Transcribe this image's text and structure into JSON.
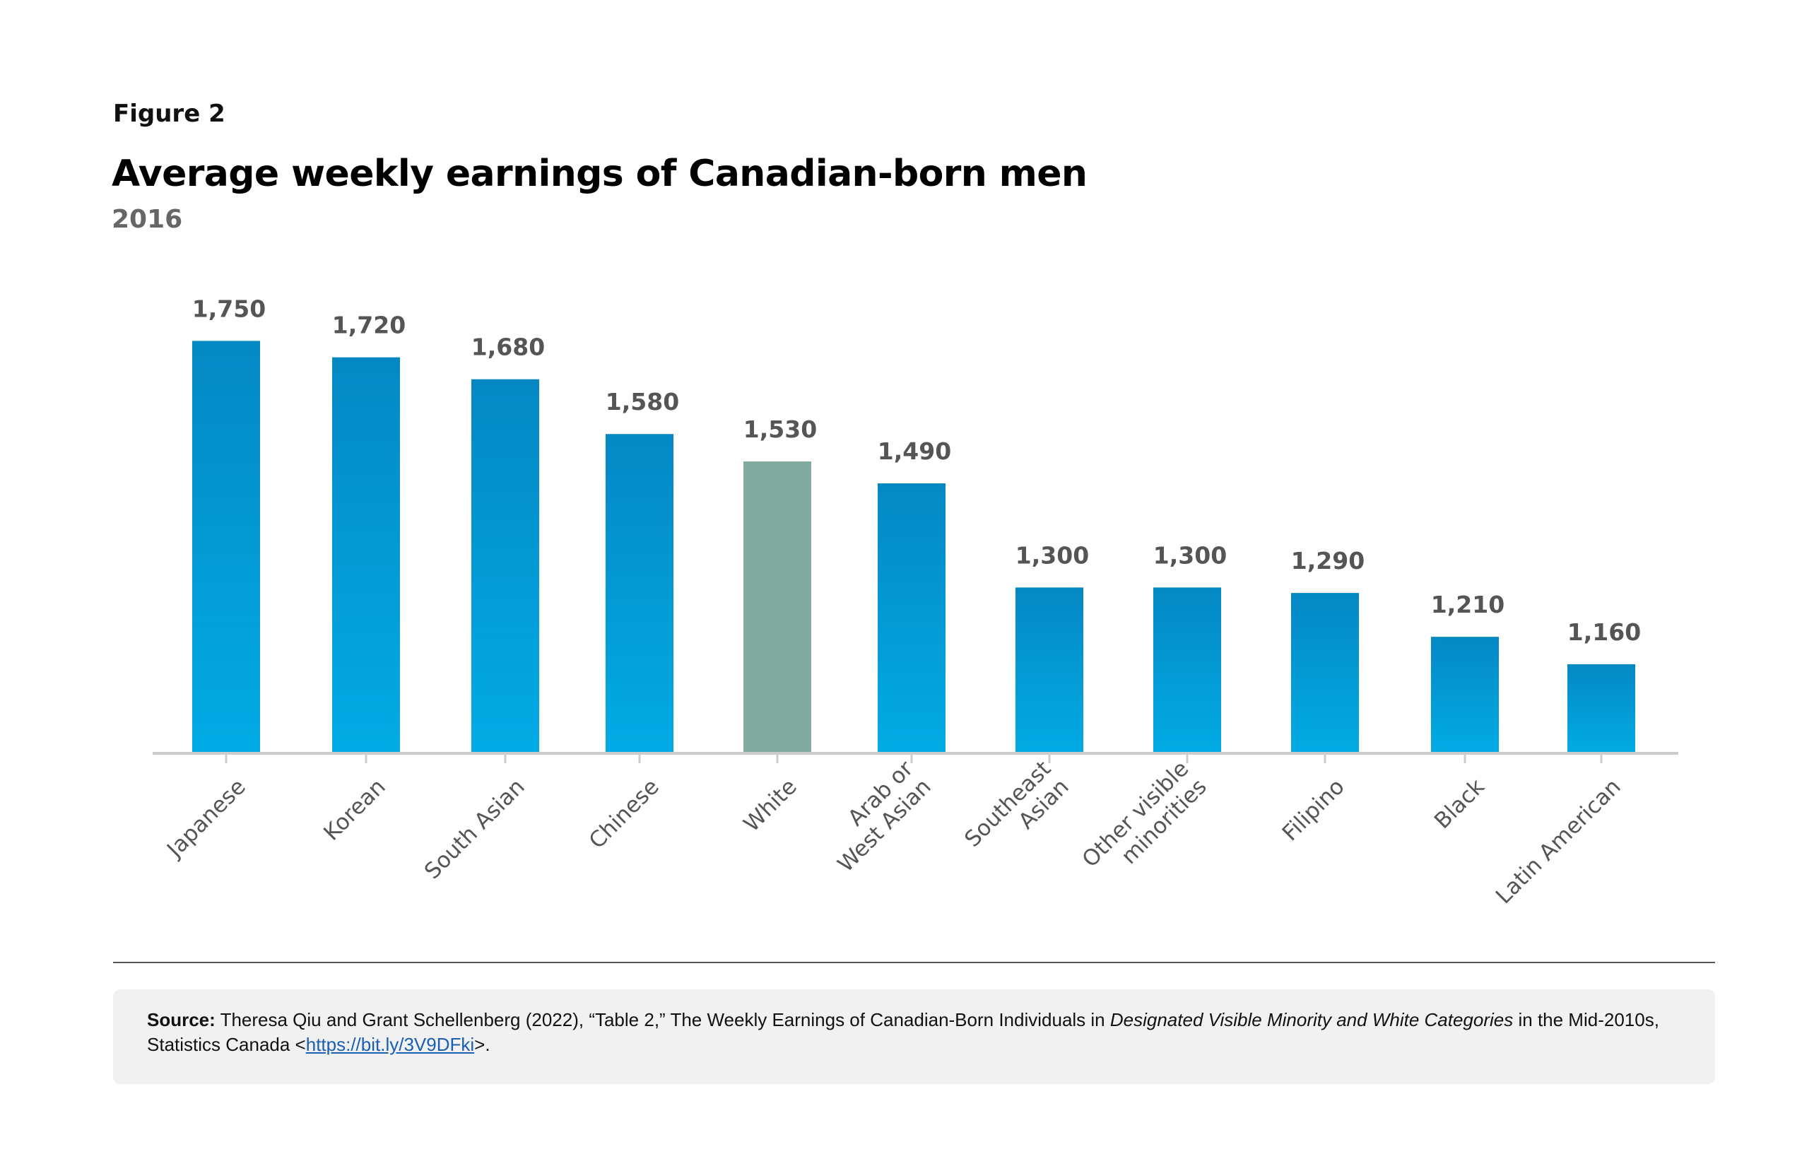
{
  "figure_label": "Figure 2",
  "chart_data": {
    "type": "bar",
    "title": "Average weekly earnings of Canadian-born men",
    "subtitle": "2016",
    "categories": [
      "Japanese",
      "Korean",
      "South Asian",
      "Chinese",
      "White",
      "Arab or West Asian",
      "Southeast Asian",
      "Other visible minorities",
      "Filipino",
      "Black",
      "Latin American"
    ],
    "category_lines": [
      [
        "Japanese"
      ],
      [
        "Korean"
      ],
      [
        "South Asian"
      ],
      [
        "Chinese"
      ],
      [
        "White"
      ],
      [
        "Arab or",
        "West Asian"
      ],
      [
        "Southeast",
        "Asian"
      ],
      [
        "Other visible",
        "minorities"
      ],
      [
        "Filipino"
      ],
      [
        "Black"
      ],
      [
        "Latin American"
      ]
    ],
    "values": [
      1750,
      1720,
      1680,
      1580,
      1530,
      1490,
      1300,
      1300,
      1290,
      1210,
      1160
    ],
    "value_labels": [
      "1,750",
      "1,720",
      "1,680",
      "1,580",
      "1,530",
      "1,490",
      "1,300",
      "1,300",
      "1,290",
      "1,210",
      "1,160"
    ],
    "highlight_category": "White",
    "colors": {
      "bar_top": "#0488c4",
      "bar_bottom": "#02abe4",
      "highlight": "#82aaa0",
      "axis": "#cccccc"
    },
    "ylim": [
      1000,
      1800
    ],
    "grid": false,
    "legend": "none"
  },
  "source": {
    "label": "Source:",
    "text_before": "Theresa Qiu and Grant Schellenberg (2022), “Table 2,” The Weekly Earnings of Canadian-Born Individuals in",
    "italic": "Designated Visible Minority and White Categories",
    "text_after": "in the Mid-2010s, Statistics Canada <",
    "link": "https://bit.ly/3V9DFki",
    "end": ">."
  }
}
